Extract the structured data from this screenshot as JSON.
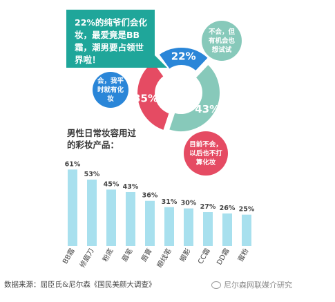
{
  "callout": {
    "text": "22%的纯爷们会化妆，最爱竟是BB霜，潮男要占领世界啦！"
  },
  "donut": {
    "segments": [
      {
        "label": "不会，但有机会也想试试",
        "value": 43,
        "display": "43%",
        "color": "#87c9ba"
      },
      {
        "label": "目前不会，以后也不打算化妆",
        "value": 35,
        "display": "35%",
        "color": "#e54b63"
      },
      {
        "label": "会，我平时就有化妆",
        "value": 22,
        "display": "22%",
        "color": "#2a86d8"
      }
    ]
  },
  "chart_data": {
    "type": "bar",
    "title": "男性日常妆容用过的彩妆产品：",
    "categories": [
      "BB霜",
      "修眉刀",
      "粉底",
      "眉笔",
      "唇膏",
      "眼线笔",
      "眼影",
      "CC霜",
      "DD霜",
      "蜜粉"
    ],
    "values": [
      61,
      53,
      45,
      43,
      36,
      31,
      30,
      27,
      26,
      25
    ],
    "value_labels": [
      "61%",
      "53%",
      "45%",
      "43%",
      "36%",
      "31%",
      "30%",
      "27%",
      "26%",
      "25%"
    ],
    "ylim": [
      0,
      70
    ],
    "color": "#a8e0ee",
    "grid": false
  },
  "source": "数据来源：屈臣氏&尼尔森《国民美颜大调查》",
  "watermark": "尼尔森网联媒介研究"
}
